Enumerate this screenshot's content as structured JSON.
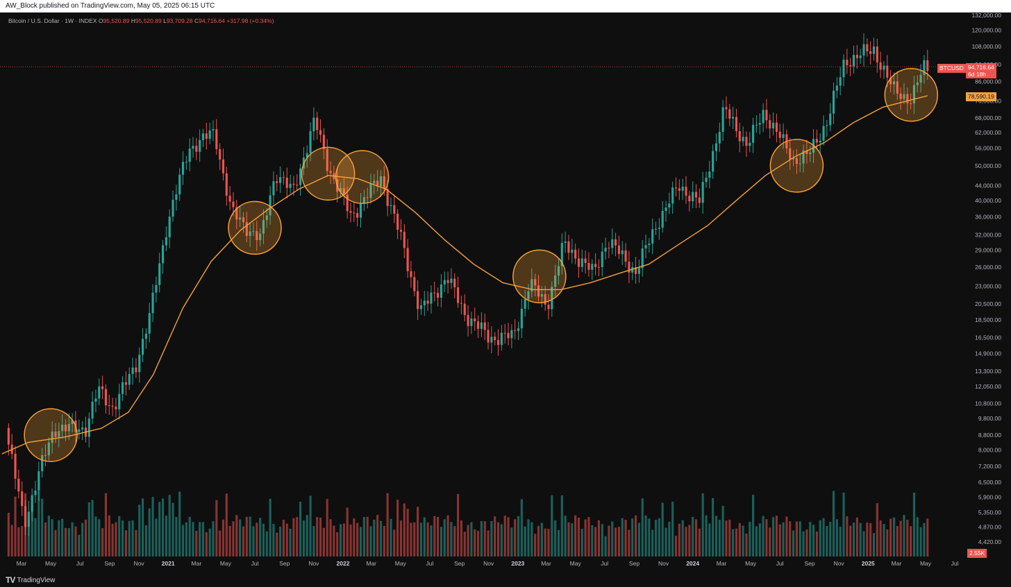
{
  "header": {
    "published": "AW_Block published on TradingView.com, May 05, 2025 06:15 UTC",
    "symbol_desc": "Bitcoin / U.S. Dollar · 1W · INDEX",
    "o_label": "O",
    "o_value": "95,520.89",
    "h_label": "H",
    "h_value": "95,520.89",
    "l_label": "L",
    "l_value": "93,709.28",
    "c_label": "C",
    "c_value": "94,716.64",
    "change": "+317.98 (+0.34%)"
  },
  "price_tags": {
    "symbol": "BTCUSD",
    "last_price": "94,716.64",
    "countdown": "6d 18h",
    "ma_value": "78,590.19",
    "volume": "2.55K"
  },
  "footer": {
    "brand": "TradingView"
  },
  "colors": {
    "up": "#26a69a",
    "down": "#ef5350",
    "ma": "#f7a13b",
    "highlight": "#f7a13b"
  },
  "chart_data": {
    "type": "candlestick",
    "interval": "1W",
    "y_scale": "log",
    "y_ticks": [
      "132,000.00",
      "120,000.00",
      "108,000.00",
      "96,000.00",
      "86,000.00",
      "76,000.00",
      "68,000.00",
      "62,000.00",
      "56,000.00",
      "50,000.00",
      "44,000.00",
      "40,000.00",
      "36,000.00",
      "32,000.00",
      "29,000.00",
      "26,000.00",
      "23,000.00",
      "20,500.00",
      "18,500.00",
      "16,500.00",
      "14,900.00",
      "13,300.00",
      "12,050.00",
      "10,800.00",
      "9,800.00",
      "8,800.00",
      "8,000.00",
      "7,200.00",
      "6,500.00",
      "5,900.00",
      "5,350.00",
      "4,870.00",
      "4,420.00"
    ],
    "x_ticks": [
      "Mar",
      "May",
      "Jul",
      "Sep",
      "Nov",
      "2021",
      "Mar",
      "May",
      "Jul",
      "Sep",
      "Nov",
      "2022",
      "Mar",
      "May",
      "Jul",
      "Sep",
      "Nov",
      "2023",
      "Mar",
      "May",
      "Jul",
      "Sep",
      "Nov",
      "2024",
      "Mar",
      "May",
      "Jul",
      "Sep",
      "Nov",
      "2025",
      "Mar",
      "May",
      "Jul"
    ],
    "price_path": [
      {
        "d": "2020-02-01",
        "p": 9500
      },
      {
        "d": "2020-03-14",
        "p": 5000
      },
      {
        "d": "2020-04-15",
        "p": 7000
      },
      {
        "d": "2020-05-15",
        "p": 9200
      },
      {
        "d": "2020-07-20",
        "p": 9200
      },
      {
        "d": "2020-08-15",
        "p": 11800
      },
      {
        "d": "2020-09-15",
        "p": 10500
      },
      {
        "d": "2020-11-01",
        "p": 13800
      },
      {
        "d": "2020-12-01",
        "p": 19000
      },
      {
        "d": "2021-01-05",
        "p": 34000
      },
      {
        "d": "2021-02-20",
        "p": 56000
      },
      {
        "d": "2021-04-15",
        "p": 62000
      },
      {
        "d": "2021-05-20",
        "p": 37000
      },
      {
        "d": "2021-07-20",
        "p": 31000
      },
      {
        "d": "2021-08-20",
        "p": 48000
      },
      {
        "d": "2021-09-25",
        "p": 42000
      },
      {
        "d": "2021-11-10",
        "p": 67000
      },
      {
        "d": "2021-12-10",
        "p": 49000
      },
      {
        "d": "2022-01-25",
        "p": 36000
      },
      {
        "d": "2022-03-28",
        "p": 46500
      },
      {
        "d": "2022-05-10",
        "p": 31000
      },
      {
        "d": "2022-06-18",
        "p": 19500
      },
      {
        "d": "2022-08-13",
        "p": 24400
      },
      {
        "d": "2022-09-20",
        "p": 19200
      },
      {
        "d": "2022-11-09",
        "p": 16500
      },
      {
        "d": "2022-12-30",
        "p": 16600
      },
      {
        "d": "2023-02-01",
        "p": 23500
      },
      {
        "d": "2023-03-10",
        "p": 20300
      },
      {
        "d": "2023-04-14",
        "p": 30200
      },
      {
        "d": "2023-06-15",
        "p": 25000
      },
      {
        "d": "2023-07-14",
        "p": 31000
      },
      {
        "d": "2023-09-11",
        "p": 25200
      },
      {
        "d": "2023-10-25",
        "p": 34500
      },
      {
        "d": "2023-12-10",
        "p": 44000
      },
      {
        "d": "2024-01-22",
        "p": 39500
      },
      {
        "d": "2024-03-14",
        "p": 72000
      },
      {
        "d": "2024-05-01",
        "p": 57000
      },
      {
        "d": "2024-06-05",
        "p": 71000
      },
      {
        "d": "2024-08-05",
        "p": 52000
      },
      {
        "d": "2024-09-06",
        "p": 53500
      },
      {
        "d": "2024-10-15",
        "p": 67000
      },
      {
        "d": "2024-11-20",
        "p": 98000
      },
      {
        "d": "2025-01-20",
        "p": 106000
      },
      {
        "d": "2025-02-28",
        "p": 82000
      },
      {
        "d": "2025-04-08",
        "p": 76500
      },
      {
        "d": "2025-05-05",
        "p": 94716
      }
    ],
    "moving_average": [
      {
        "d": "2020-01-20",
        "p": 7800
      },
      {
        "d": "2020-03-15",
        "p": 8400
      },
      {
        "d": "2020-06-01",
        "p": 8700
      },
      {
        "d": "2020-08-15",
        "p": 9200
      },
      {
        "d": "2020-10-10",
        "p": 10200
      },
      {
        "d": "2020-12-01",
        "p": 13000
      },
      {
        "d": "2021-02-01",
        "p": 20000
      },
      {
        "d": "2021-04-01",
        "p": 27000
      },
      {
        "d": "2021-06-01",
        "p": 33000
      },
      {
        "d": "2021-08-01",
        "p": 38000
      },
      {
        "d": "2021-10-01",
        "p": 43000
      },
      {
        "d": "2021-12-01",
        "p": 47000
      },
      {
        "d": "2022-02-01",
        "p": 46000
      },
      {
        "d": "2022-04-01",
        "p": 43000
      },
      {
        "d": "2022-06-01",
        "p": 37000
      },
      {
        "d": "2022-08-01",
        "p": 31000
      },
      {
        "d": "2022-10-01",
        "p": 26500
      },
      {
        "d": "2022-12-01",
        "p": 23500
      },
      {
        "d": "2023-02-01",
        "p": 22500
      },
      {
        "d": "2023-04-01",
        "p": 22500
      },
      {
        "d": "2023-06-01",
        "p": 23500
      },
      {
        "d": "2023-08-01",
        "p": 25000
      },
      {
        "d": "2023-10-01",
        "p": 26500
      },
      {
        "d": "2023-12-01",
        "p": 30000
      },
      {
        "d": "2024-02-01",
        "p": 34000
      },
      {
        "d": "2024-04-01",
        "p": 40000
      },
      {
        "d": "2024-06-01",
        "p": 47000
      },
      {
        "d": "2024-08-01",
        "p": 53000
      },
      {
        "d": "2024-10-01",
        "p": 58000
      },
      {
        "d": "2024-12-01",
        "p": 66000
      },
      {
        "d": "2025-02-01",
        "p": 73000
      },
      {
        "d": "2025-05-05",
        "p": 78590
      }
    ],
    "highlight_circles": [
      {
        "d": "2020-05-01",
        "p": 8800
      },
      {
        "d": "2021-07-01",
        "p": 33500
      },
      {
        "d": "2021-12-01",
        "p": 47500
      },
      {
        "d": "2022-02-10",
        "p": 46500
      },
      {
        "d": "2023-02-15",
        "p": 24500
      },
      {
        "d": "2024-08-05",
        "p": 50000
      },
      {
        "d": "2025-04-01",
        "p": 79000
      }
    ]
  }
}
